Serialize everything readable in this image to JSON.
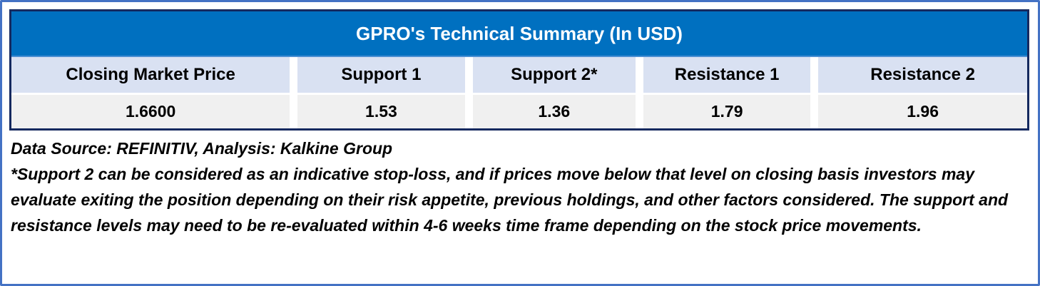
{
  "table": {
    "title": "GPRO's Technical Summary (In USD)",
    "columns": [
      {
        "header": "Closing Market Price",
        "value": "1.6600"
      },
      {
        "header": "Support 1",
        "value": "1.53"
      },
      {
        "header": "Support 2*",
        "value": "1.36"
      },
      {
        "header": "Resistance 1",
        "value": "1.79"
      },
      {
        "header": "Resistance 2",
        "value": "1.96"
      }
    ]
  },
  "notes": {
    "data_source": "Data Source: REFINITIV, Analysis: Kalkine Group",
    "disclaimer": "*Support 2 can be considered as an indicative stop-loss, and if prices move below that level on closing basis investors may evaluate exiting the position depending on their risk appetite, previous holdings, and other factors considered. The support and resistance levels may need to be re-evaluated within 4-6 weeks time frame depending on the stock price movements."
  },
  "colors": {
    "title_bg": "#0070C0",
    "title_text": "#FFFFFF",
    "header_bg": "#D9E1F2",
    "value_bg": "#F0F0F0",
    "table_border": "#15295F",
    "frame_border": "#4472C4",
    "text": "#000000"
  },
  "chart_data": {
    "type": "table",
    "title": "GPRO's Technical Summary (In USD)",
    "unit": "USD",
    "columns": [
      "Closing Market Price",
      "Support 1",
      "Support 2*",
      "Resistance 1",
      "Resistance 2"
    ],
    "rows": [
      [
        "1.6600",
        "1.53",
        "1.36",
        "1.79",
        "1.96"
      ]
    ],
    "values": {
      "closing_market_price": 1.66,
      "support_1": 1.53,
      "support_2": 1.36,
      "resistance_1": 1.79,
      "resistance_2": 1.96
    }
  }
}
